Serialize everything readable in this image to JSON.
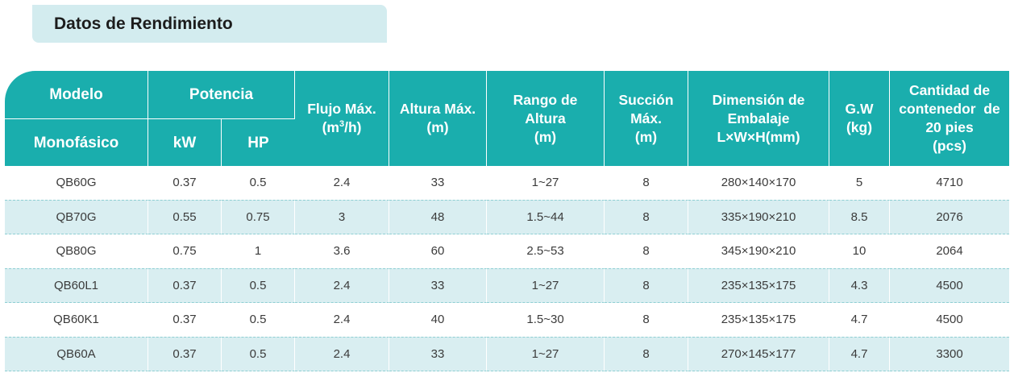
{
  "title": "Datos de Rendimiento",
  "header": {
    "modelo": "Modelo",
    "monofasico": "Monofásico",
    "potencia": "Potencia",
    "kw": "kW",
    "hp": "HP",
    "flujo_line1": "Flujo Máx.",
    "flujo_unit_pre": "(m",
    "flujo_unit_sup": "3",
    "flujo_unit_post": "/h)",
    "altura_line1": "Altura Máx.",
    "altura_line2": "(m)",
    "rango_line1": "Rango de",
    "rango_line2": "Altura",
    "rango_line3": "(m)",
    "succion_line1": "Succión",
    "succion_line2": "Máx.",
    "succion_line3": "(m)",
    "dimension_line1": "Dimensión de",
    "dimension_line2": "Embalaje",
    "dimension_line3": "L×W×H(mm)",
    "gw_line1": "G.W",
    "gw_line2": "(kg)",
    "cantidad_line1": "Cantidad de",
    "cantidad_line2": "contenedor  de",
    "cantidad_line3": "20 pies",
    "cantidad_line4": "(pcs)"
  },
  "rows": [
    [
      "QB60G",
      "0.37",
      "0.5",
      "2.4",
      "33",
      "1~27",
      "8",
      "280×140×170",
      "5",
      "4710"
    ],
    [
      "QB70G",
      "0.55",
      "0.75",
      "3",
      "48",
      "1.5~44",
      "8",
      "335×190×210",
      "8.5",
      "2076"
    ],
    [
      "QB80G",
      "0.75",
      "1",
      "3.6",
      "60",
      "2.5~53",
      "8",
      "345×190×210",
      "10",
      "2064"
    ],
    [
      "QB60L1",
      "0.37",
      "0.5",
      "2.4",
      "33",
      "1~27",
      "8",
      "235×135×175",
      "4.3",
      "4500"
    ],
    [
      "QB60K1",
      "0.37",
      "0.5",
      "2.4",
      "40",
      "1.5~30",
      "8",
      "235×135×175",
      "4.7",
      "4500"
    ],
    [
      "QB60A",
      "0.37",
      "0.5",
      "2.4",
      "33",
      "1~27",
      "8",
      "270×145×177",
      "4.7",
      "3300"
    ]
  ],
  "colors": {
    "header_bg": "#1aaead",
    "title_bg": "#d3ecef",
    "alt_row_bg": "#d9eef1"
  }
}
